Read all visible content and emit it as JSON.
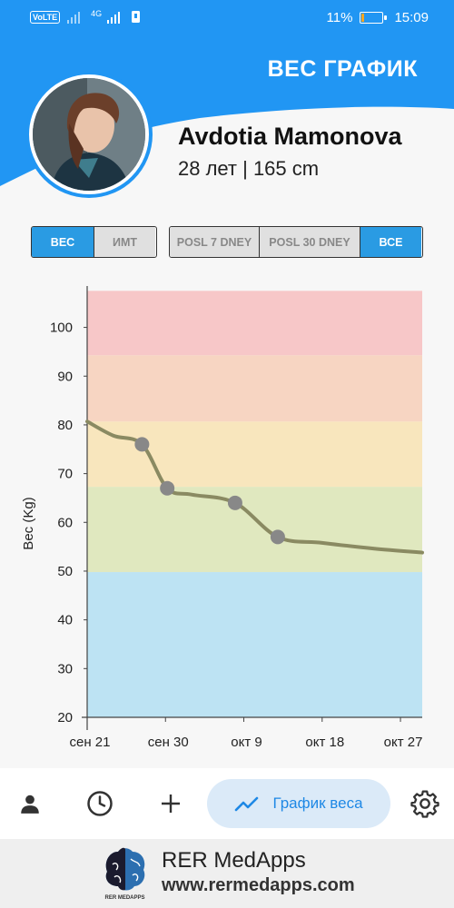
{
  "status_bar": {
    "volte": "VoLTE",
    "network": "4G",
    "battery_percent": "11%",
    "battery_level": 0.11,
    "time": "15:09"
  },
  "header": {
    "title": "ВЕС ГРАФИК",
    "accent_color": "#2196f3"
  },
  "profile": {
    "name": "Avdotia Mamonova",
    "info": "28 лет | 165 cm"
  },
  "metric_toggle": [
    {
      "label": "ВЕС",
      "active": true
    },
    {
      "label": "ИМТ",
      "active": false
    }
  ],
  "range_toggle": [
    {
      "label": "POSL 7 DNEY",
      "active": false
    },
    {
      "label": "POSL 30 DNEY",
      "active": false
    },
    {
      "label": "ВСЕ",
      "active": true
    }
  ],
  "chart_data": {
    "type": "line",
    "ylabel": "Вес (Kg)",
    "xlabel": "",
    "ylim": [
      20,
      107
    ],
    "yticks": [
      20,
      30,
      40,
      50,
      60,
      70,
      80,
      90,
      100
    ],
    "x_tick_labels": [
      "сен 21",
      "сен 30",
      "окт 9",
      "окт 18",
      "окт 27"
    ],
    "x_tick_days": [
      0,
      9,
      18,
      27,
      36
    ],
    "x_range_days": [
      0,
      38.5
    ],
    "zones": [
      {
        "from": 20,
        "to": 49.8,
        "color": "#bde3f3"
      },
      {
        "from": 49.8,
        "to": 67.3,
        "color": "#e0e8bf"
      },
      {
        "from": 67.3,
        "to": 80.7,
        "color": "#f8e6bd"
      },
      {
        "from": 80.7,
        "to": 94.3,
        "color": "#f7d5c2"
      },
      {
        "from": 94.3,
        "to": 107.5,
        "color": "#f7c7c8"
      }
    ],
    "line_color": "#8a8a62",
    "marker_color": "#888888",
    "points": [
      {
        "date": "сен 27",
        "day": 6.3,
        "value": 76
      },
      {
        "date": "сен 30",
        "day": 9.2,
        "value": 67
      },
      {
        "date": "окт 8",
        "day": 17.0,
        "value": 64
      },
      {
        "date": "окт 13",
        "day": 21.9,
        "value": 57
      }
    ],
    "curve": [
      {
        "day": 0,
        "value": 80.7
      },
      {
        "day": 3,
        "value": 77.8
      },
      {
        "day": 6.3,
        "value": 76
      },
      {
        "day": 9.2,
        "value": 67
      },
      {
        "day": 12,
        "value": 65.7
      },
      {
        "day": 17.0,
        "value": 64
      },
      {
        "day": 21.9,
        "value": 57
      },
      {
        "day": 27,
        "value": 55.8
      },
      {
        "day": 33,
        "value": 54.6
      },
      {
        "day": 38.5,
        "value": 53.8
      }
    ]
  },
  "bottom_nav": {
    "active_label": "График веса",
    "icons": [
      "person-icon",
      "history-icon",
      "add-icon",
      "trend-icon",
      "settings-icon"
    ]
  },
  "footer": {
    "brand": "RER MedApps",
    "url": "www.rermedapps.com",
    "logo_text": "RER MEDAPPS"
  }
}
